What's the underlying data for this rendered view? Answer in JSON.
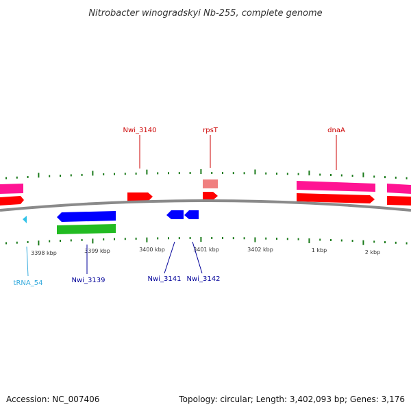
{
  "title": "Nitrobacter winogradskyi Nb-255, complete genome",
  "footer": {
    "accession": "Accession: NC_007406",
    "summary": "Topology: circular; Length: 3,402,093 bp; Genes: 3,176"
  },
  "colors": {
    "backbone": "#8a8a8a",
    "tick": "#1a7a1a",
    "cds_forward": "#ff0000",
    "gene_forward": "#ff1493",
    "cds_reverse": "#0000ff",
    "gene_reverse": "#22bb22",
    "rrna_like": "#f08080",
    "trna": "#33c3e8",
    "label_forward": "#cc0000",
    "label_reverse": "#000099",
    "label_trna": "#33aadd"
  },
  "scale_labels": [
    "3398 kbp",
    "3399 kbp",
    "3400 kbp",
    "3401 kbp",
    "3402 kbp",
    "1 kbp",
    "2 kbp"
  ],
  "gene_labels": {
    "forward": [
      "Nwi_3140",
      "rpsT",
      "dnaA"
    ],
    "reverse": [
      "Nwi_3139",
      "Nwi_3141",
      "Nwi_3142"
    ],
    "trna": [
      "tRNA_54"
    ]
  }
}
